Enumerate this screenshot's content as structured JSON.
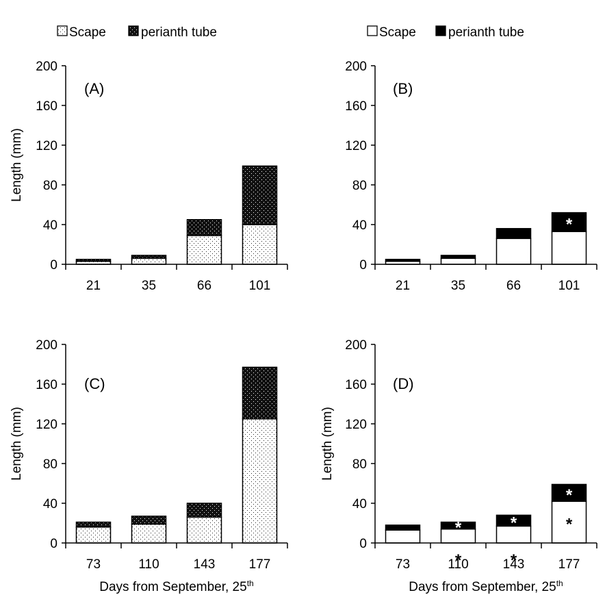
{
  "legend": {
    "left": {
      "scape": "Scape",
      "tube": "perianth tube"
    },
    "right": {
      "scape": "Scape",
      "tube": "perianth tube"
    }
  },
  "chart_data": [
    {
      "type": "bar",
      "stacked": true,
      "panel_label": "(A)",
      "categories": [
        "21",
        "35",
        "66",
        "101"
      ],
      "series": [
        {
          "name": "Scape",
          "values": [
            3,
            6,
            29,
            40
          ],
          "fill": "dotted"
        },
        {
          "name": "perianth tube",
          "values": [
            2,
            3,
            16,
            59
          ],
          "fill": "dense-dotted-black"
        }
      ],
      "ylabel": "Length (mm)",
      "xlabel": "",
      "ylim": [
        0,
        200
      ],
      "yticks": [
        0,
        40,
        80,
        120,
        160,
        200
      ],
      "annotations": []
    },
    {
      "type": "bar",
      "stacked": true,
      "panel_label": "(B)",
      "categories": [
        "21",
        "35",
        "66",
        "101"
      ],
      "series": [
        {
          "name": "Scape",
          "values": [
            3,
            6,
            26,
            33
          ],
          "fill": "white"
        },
        {
          "name": "perianth tube",
          "values": [
            2,
            3,
            10,
            19
          ],
          "fill": "black"
        }
      ],
      "ylabel": "",
      "xlabel": "",
      "ylim": [
        0,
        200
      ],
      "yticks": [
        0,
        40,
        80,
        120,
        160,
        200
      ],
      "annotations": [
        {
          "category": "101",
          "series": "perianth tube",
          "text": "*"
        }
      ]
    },
    {
      "type": "bar",
      "stacked": true,
      "panel_label": "(C)",
      "categories": [
        "73",
        "110",
        "143",
        "177"
      ],
      "series": [
        {
          "name": "Scape",
          "values": [
            16,
            19,
            26,
            125
          ],
          "fill": "dotted"
        },
        {
          "name": "perianth tube",
          "values": [
            5,
            8,
            14,
            52
          ],
          "fill": "dense-dotted-black"
        }
      ],
      "ylabel": "Length (mm)",
      "xlabel": "Days from September, 25th",
      "ylim": [
        0,
        200
      ],
      "yticks": [
        0,
        40,
        80,
        120,
        160,
        200
      ],
      "annotations": []
    },
    {
      "type": "bar",
      "stacked": true,
      "panel_label": "(D)",
      "categories": [
        "73",
        "110",
        "143",
        "177"
      ],
      "series": [
        {
          "name": "Scape",
          "values": [
            13,
            14,
            17,
            42
          ],
          "fill": "white"
        },
        {
          "name": "perianth tube",
          "values": [
            5,
            7,
            11,
            17
          ],
          "fill": "black"
        }
      ],
      "ylabel": "Length (mm)",
      "xlabel": "Days from September, 25th",
      "ylim": [
        0,
        200
      ],
      "yticks": [
        0,
        40,
        80,
        120,
        160,
        200
      ],
      "annotations": [
        {
          "category": "110",
          "series": "Scape",
          "text": "*"
        },
        {
          "category": "110",
          "series": "perianth tube",
          "text": "*"
        },
        {
          "category": "143",
          "series": "Scape",
          "text": "*"
        },
        {
          "category": "143",
          "series": "perianth tube",
          "text": "*"
        },
        {
          "category": "177",
          "series": "Scape",
          "text": "*"
        },
        {
          "category": "177",
          "series": "perianth tube",
          "text": "*"
        }
      ]
    }
  ]
}
